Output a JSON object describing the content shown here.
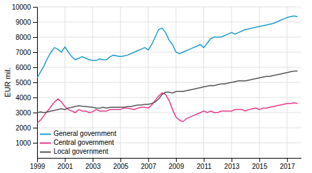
{
  "chart_data": {
    "type": "line",
    "y_label": "EUR mil.",
    "x": [
      1999,
      1999.25,
      1999.5,
      1999.75,
      2000,
      2000.25,
      2000.5,
      2000.75,
      2001,
      2001.25,
      2001.5,
      2001.75,
      2002,
      2002.25,
      2002.5,
      2002.75,
      2003,
      2003.25,
      2003.5,
      2003.75,
      2004,
      2004.25,
      2004.5,
      2004.75,
      2005,
      2005.25,
      2005.5,
      2005.75,
      2006,
      2006.25,
      2006.5,
      2006.75,
      2007,
      2007.25,
      2007.5,
      2007.75,
      2008,
      2008.25,
      2008.5,
      2008.75,
      2009,
      2009.25,
      2009.5,
      2009.75,
      2010,
      2010.25,
      2010.5,
      2010.75,
      2011,
      2011.25,
      2011.5,
      2011.75,
      2012,
      2012.25,
      2012.5,
      2012.75,
      2013,
      2013.25,
      2013.5,
      2013.75,
      2014,
      2014.25,
      2014.5,
      2014.75,
      2015,
      2015.25,
      2015.5,
      2015.75,
      2016,
      2016.25,
      2016.5,
      2016.75,
      2017,
      2017.25,
      2017.5,
      2017.75
    ],
    "series": [
      {
        "name": "General government",
        "color": "#1F9BCE",
        "values": [
          5300,
          5700,
          6100,
          6600,
          7000,
          7300,
          7200,
          7000,
          7350,
          7000,
          6700,
          6500,
          6600,
          6700,
          6600,
          6500,
          6450,
          6450,
          6550,
          6500,
          6500,
          6700,
          6800,
          6750,
          6700,
          6750,
          6800,
          6900,
          7000,
          7100,
          7200,
          7300,
          7150,
          7500,
          8000,
          8500,
          8600,
          8300,
          7800,
          7500,
          7000,
          6900,
          7000,
          7100,
          7200,
          7300,
          7400,
          7500,
          7300,
          7600,
          7900,
          8000,
          8000,
          8000,
          8100,
          8200,
          8300,
          8200,
          8300,
          8400,
          8500,
          8550,
          8600,
          8650,
          8700,
          8750,
          8800,
          8850,
          8900,
          9000,
          9100,
          9200,
          9300,
          9350,
          9400,
          9350
        ]
      },
      {
        "name": "Central government",
        "color": "#E8388A",
        "values": [
          2300,
          2500,
          2800,
          3100,
          3400,
          3700,
          3900,
          3700,
          3400,
          3200,
          3100,
          3000,
          3200,
          3100,
          3100,
          3000,
          3050,
          3200,
          3100,
          3100,
          3100,
          3200,
          3200,
          3200,
          3200,
          3300,
          3300,
          3250,
          3200,
          3300,
          3350,
          3350,
          3300,
          3500,
          3800,
          4100,
          4300,
          4200,
          3800,
          3200,
          2700,
          2500,
          2400,
          2600,
          2700,
          2800,
          2900,
          3000,
          3100,
          3000,
          3100,
          3000,
          3000,
          3100,
          3100,
          3100,
          3100,
          3200,
          3200,
          3200,
          3100,
          3200,
          3250,
          3300,
          3200,
          3300,
          3300,
          3350,
          3400,
          3450,
          3500,
          3550,
          3600,
          3600,
          3650,
          3600
        ]
      },
      {
        "name": "Local government",
        "color": "#555555",
        "values": [
          3000,
          3050,
          3000,
          3050,
          3100,
          3150,
          3200,
          3250,
          3200,
          3300,
          3350,
          3400,
          3450,
          3420,
          3400,
          3380,
          3350,
          3300,
          3300,
          3350,
          3300,
          3350,
          3350,
          3350,
          3350,
          3350,
          3400,
          3400,
          3450,
          3500,
          3500,
          3550,
          3550,
          3600,
          3700,
          3900,
          4200,
          4350,
          4350,
          4300,
          4400,
          4400,
          4400,
          4450,
          4500,
          4550,
          4600,
          4650,
          4700,
          4750,
          4800,
          4780,
          4850,
          4900,
          4900,
          4950,
          5000,
          5050,
          5100,
          5100,
          5100,
          5150,
          5200,
          5250,
          5300,
          5350,
          5400,
          5400,
          5450,
          5500,
          5550,
          5600,
          5650,
          5700,
          5750,
          5750
        ]
      }
    ],
    "xlim": [
      1999,
      2018
    ],
    "ylim": [
      0,
      10000
    ],
    "xticks": [
      1999,
      2001,
      2003,
      2005,
      2007,
      2009,
      2011,
      2013,
      2015,
      2017
    ],
    "yticks": [
      1000,
      2000,
      3000,
      4000,
      5000,
      6000,
      7000,
      8000,
      9000,
      10000
    ],
    "grid": true,
    "legend": "lower left"
  }
}
